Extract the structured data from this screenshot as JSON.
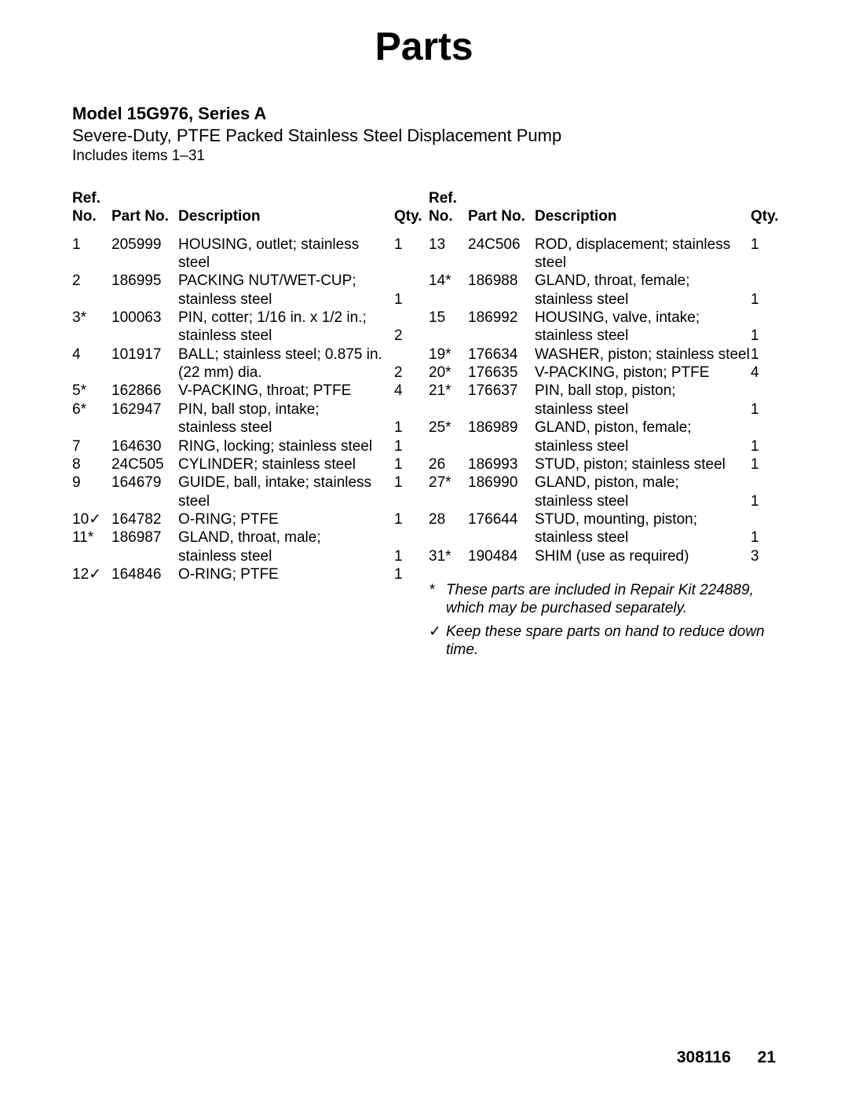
{
  "title": "Parts",
  "model_line": "Model 15G976, Series A",
  "sub_line": "Severe-Duty, PTFE Packed Stainless Steel Displacement Pump",
  "includes_line": "Includes items 1–31",
  "headers": {
    "ref1": "Ref.",
    "ref2": "No.",
    "part": "Part No.",
    "desc": "Description",
    "qty": "Qty."
  },
  "col_widths": {
    "ref": 50,
    "part": 85,
    "qty": 32
  },
  "font": {
    "title_size": 50,
    "heading_size": 22,
    "body_size": 19,
    "footer_size": 21
  },
  "colors": {
    "text": "#000000",
    "background": "#ffffff"
  },
  "left_rows": [
    {
      "ref": "1",
      "sym": "",
      "part": "205999",
      "desc": "HOUSING, outlet; stainless steel",
      "qty": "1"
    },
    {
      "ref": "2",
      "sym": "",
      "part": "186995",
      "desc": "PACKING NUT/WET-CUP;",
      "qty": ""
    },
    {
      "ref": "",
      "sym": "",
      "part": "",
      "desc": "stainless steel",
      "qty": "1"
    },
    {
      "ref": "3",
      "sym": "*",
      "part": "100063",
      "desc": "PIN, cotter; 1/16 in. x 1/2 in.;",
      "qty": ""
    },
    {
      "ref": "",
      "sym": "",
      "part": "",
      "desc": "stainless steel",
      "qty": "2"
    },
    {
      "ref": "4",
      "sym": "",
      "part": "101917",
      "desc": "BALL; stainless steel; 0.875 in.",
      "qty": ""
    },
    {
      "ref": "",
      "sym": "",
      "part": "",
      "desc": "(22 mm) dia.",
      "qty": "2"
    },
    {
      "ref": "5",
      "sym": "*",
      "part": "162866",
      "desc": "V-PACKING, throat; PTFE",
      "qty": "4"
    },
    {
      "ref": "6",
      "sym": "*",
      "part": "162947",
      "desc": "PIN, ball stop, intake;",
      "qty": ""
    },
    {
      "ref": "",
      "sym": "",
      "part": "",
      "desc": "stainless steel",
      "qty": "1"
    },
    {
      "ref": "7",
      "sym": "",
      "part": "164630",
      "desc": "RING, locking; stainless steel",
      "qty": "1"
    },
    {
      "ref": "8",
      "sym": "",
      "part": "24C505",
      "desc": "CYLINDER; stainless steel",
      "qty": "1"
    },
    {
      "ref": "9",
      "sym": "",
      "part": "164679",
      "desc": "GUIDE, ball, intake; stainless steel",
      "qty": "1"
    },
    {
      "ref": "10",
      "sym": "✓",
      "part": "164782",
      "desc": "O-RING; PTFE",
      "qty": "1"
    },
    {
      "ref": "11",
      "sym": "*",
      "part": "186987",
      "desc": "GLAND, throat, male;",
      "qty": ""
    },
    {
      "ref": "",
      "sym": "",
      "part": "",
      "desc": "stainless steel",
      "qty": "1"
    },
    {
      "ref": "12",
      "sym": "✓",
      "part": "164846",
      "desc": "O-RING; PTFE",
      "qty": "1"
    }
  ],
  "right_rows": [
    {
      "ref": "13",
      "sym": "",
      "part": "24C506",
      "desc": "ROD, displacement; stainless steel",
      "qty": "1"
    },
    {
      "ref": "14",
      "sym": "*",
      "part": "186988",
      "desc": "GLAND, throat, female;",
      "qty": ""
    },
    {
      "ref": "",
      "sym": "",
      "part": "",
      "desc": "stainless steel",
      "qty": "1"
    },
    {
      "ref": "15",
      "sym": "",
      "part": "186992",
      "desc": "HOUSING, valve, intake;",
      "qty": ""
    },
    {
      "ref": "",
      "sym": "",
      "part": "",
      "desc": "stainless steel",
      "qty": "1"
    },
    {
      "ref": "19",
      "sym": "*",
      "part": "176634",
      "desc": "WASHER, piston; stainless steel",
      "qty": "1"
    },
    {
      "ref": "20",
      "sym": "*",
      "part": "176635",
      "desc": "V-PACKING, piston; PTFE",
      "qty": "4"
    },
    {
      "ref": "21",
      "sym": "*",
      "part": "176637",
      "desc": "PIN, ball stop, piston;",
      "qty": ""
    },
    {
      "ref": "",
      "sym": "",
      "part": "",
      "desc": "stainless steel",
      "qty": "1"
    },
    {
      "ref": "25",
      "sym": "*",
      "part": "186989",
      "desc": "GLAND, piston, female;",
      "qty": ""
    },
    {
      "ref": "",
      "sym": "",
      "part": "",
      "desc": "stainless steel",
      "qty": "1"
    },
    {
      "ref": "26",
      "sym": "",
      "part": "186993",
      "desc": "STUD, piston; stainless steel",
      "qty": "1"
    },
    {
      "ref": "27",
      "sym": "*",
      "part": "186990",
      "desc": "GLAND, piston, male;",
      "qty": ""
    },
    {
      "ref": "",
      "sym": "",
      "part": "",
      "desc": "stainless steel",
      "qty": "1"
    },
    {
      "ref": "28",
      "sym": "",
      "part": "176644",
      "desc": "STUD, mounting, piston;",
      "qty": ""
    },
    {
      "ref": "",
      "sym": "",
      "part": "",
      "desc": "stainless steel",
      "qty": "1"
    },
    {
      "ref": "31",
      "sym": "*",
      "part": "190484",
      "desc": "SHIM (use as required)",
      "qty": "3"
    }
  ],
  "footnotes": {
    "star_sym": "*",
    "star_text": "These parts are included in Repair Kit 224889, which may be purchased separately.",
    "check_sym": "✓",
    "check_text": "Keep these spare parts on hand to reduce down time."
  },
  "footer": {
    "docnum": "308116",
    "pagenum": "21"
  }
}
